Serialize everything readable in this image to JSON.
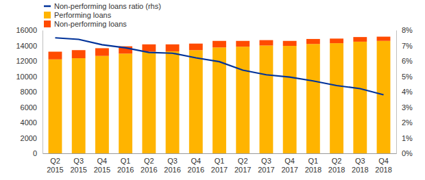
{
  "chart_data": {
    "type": "bar",
    "stacked": true,
    "grid": false,
    "legend": "top-left",
    "categories": [
      "Q2 2015",
      "Q3 2015",
      "Q4 2015",
      "Q1 2016",
      "Q2 2016",
      "Q3 2016",
      "Q4 2016",
      "Q1 2017",
      "Q2 2017",
      "Q3 2017",
      "Q4 2017",
      "Q1 2018",
      "Q2 2018",
      "Q3 2018",
      "Q4 2018"
    ],
    "series": [
      {
        "name": "Non-performing loans ratio (rhs)",
        "type": "line",
        "axis": "y2",
        "color": "#003299",
        "values": [
          7.5,
          7.4,
          7.05,
          6.85,
          6.55,
          6.5,
          6.2,
          5.95,
          5.4,
          5.1,
          4.95,
          4.7,
          4.4,
          4.2,
          3.8
        ]
      },
      {
        "name": "Performing loans",
        "type": "bar",
        "color": "#ffb400",
        "values": [
          12200,
          12350,
          12650,
          12950,
          13200,
          13250,
          13400,
          13750,
          13850,
          14000,
          13950,
          14200,
          14300,
          14500,
          14600
        ]
      },
      {
        "name": "Non-performing loans",
        "type": "bar",
        "color": "#ff4b00",
        "values": [
          1000,
          1050,
          1000,
          950,
          950,
          900,
          850,
          850,
          750,
          700,
          650,
          650,
          600,
          600,
          550
        ]
      }
    ],
    "ylim": [
      0,
      16000
    ],
    "yticks": [
      0,
      2000,
      4000,
      6000,
      8000,
      10000,
      12000,
      14000,
      16000
    ],
    "y2lim": [
      0,
      8
    ],
    "y2ticks": [
      {
        "value": 0,
        "label": "0%"
      },
      {
        "value": 1,
        "label": "1%"
      },
      {
        "value": 2,
        "label": "2%"
      },
      {
        "value": 3,
        "label": "3%"
      },
      {
        "value": 4,
        "label": "4%"
      },
      {
        "value": 5,
        "label": "5%"
      },
      {
        "value": 6,
        "label": "6%"
      },
      {
        "value": 7,
        "label": "7%"
      },
      {
        "value": 8,
        "label": "8%"
      }
    ]
  }
}
